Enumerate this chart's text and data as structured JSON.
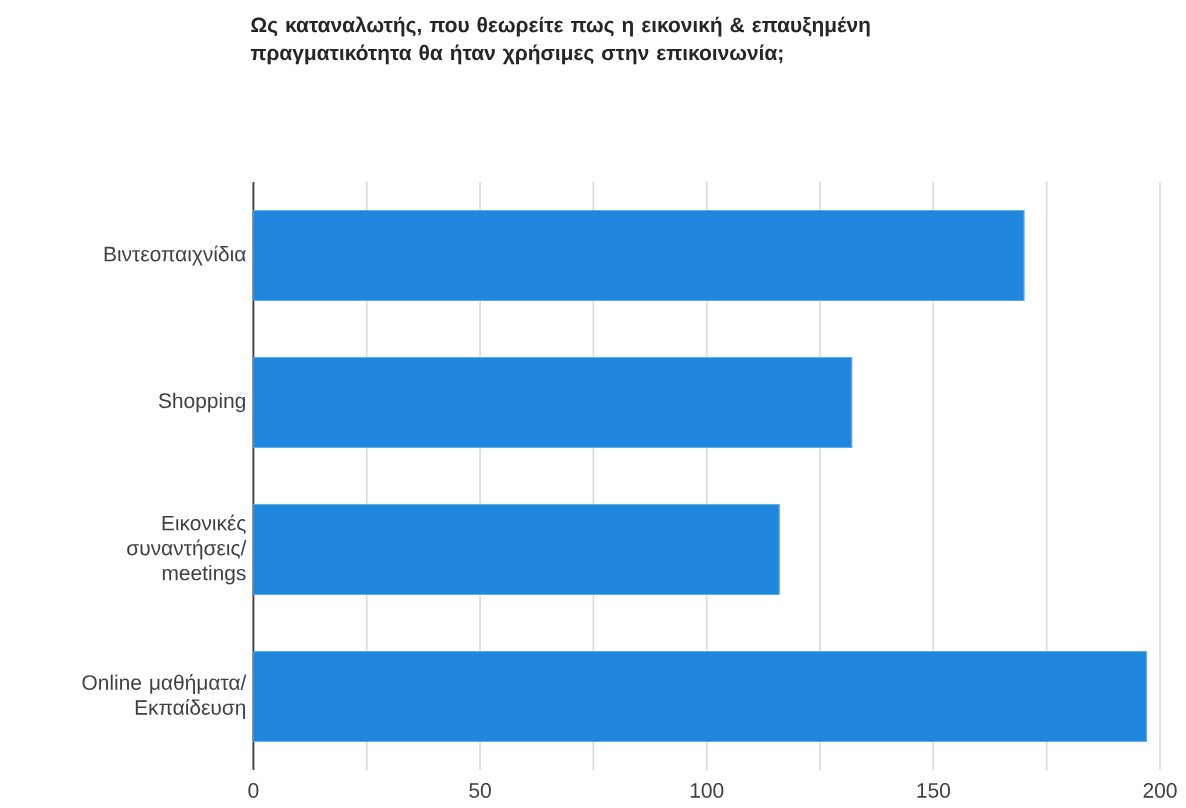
{
  "chart_data": {
    "type": "bar",
    "orientation": "horizontal",
    "title": "Ως καταναλωτής, που θεωρείτε πως η εικονική & επαυξημένη πραγματικότητα θα ήταν χρήσιμες στην επικοινωνία;",
    "categories": [
      "Βιντεοπαιχνίδια",
      "Shopping",
      "Εικονικές συναντήσεις/ meetings",
      "Online μαθήματα/ Εκπαίδευση"
    ],
    "values": [
      170,
      132,
      116,
      197
    ],
    "color": "#1f88de",
    "xlim": [
      0,
      200
    ],
    "xticks": [
      0,
      {
        "value": 25,
        "label": null
      },
      50,
      {
        "value": 75,
        "label": null
      },
      100,
      {
        "value": 125,
        "label": null
      },
      150,
      {
        "value": 175,
        "label": null
      },
      200
    ],
    "grid": "x"
  }
}
